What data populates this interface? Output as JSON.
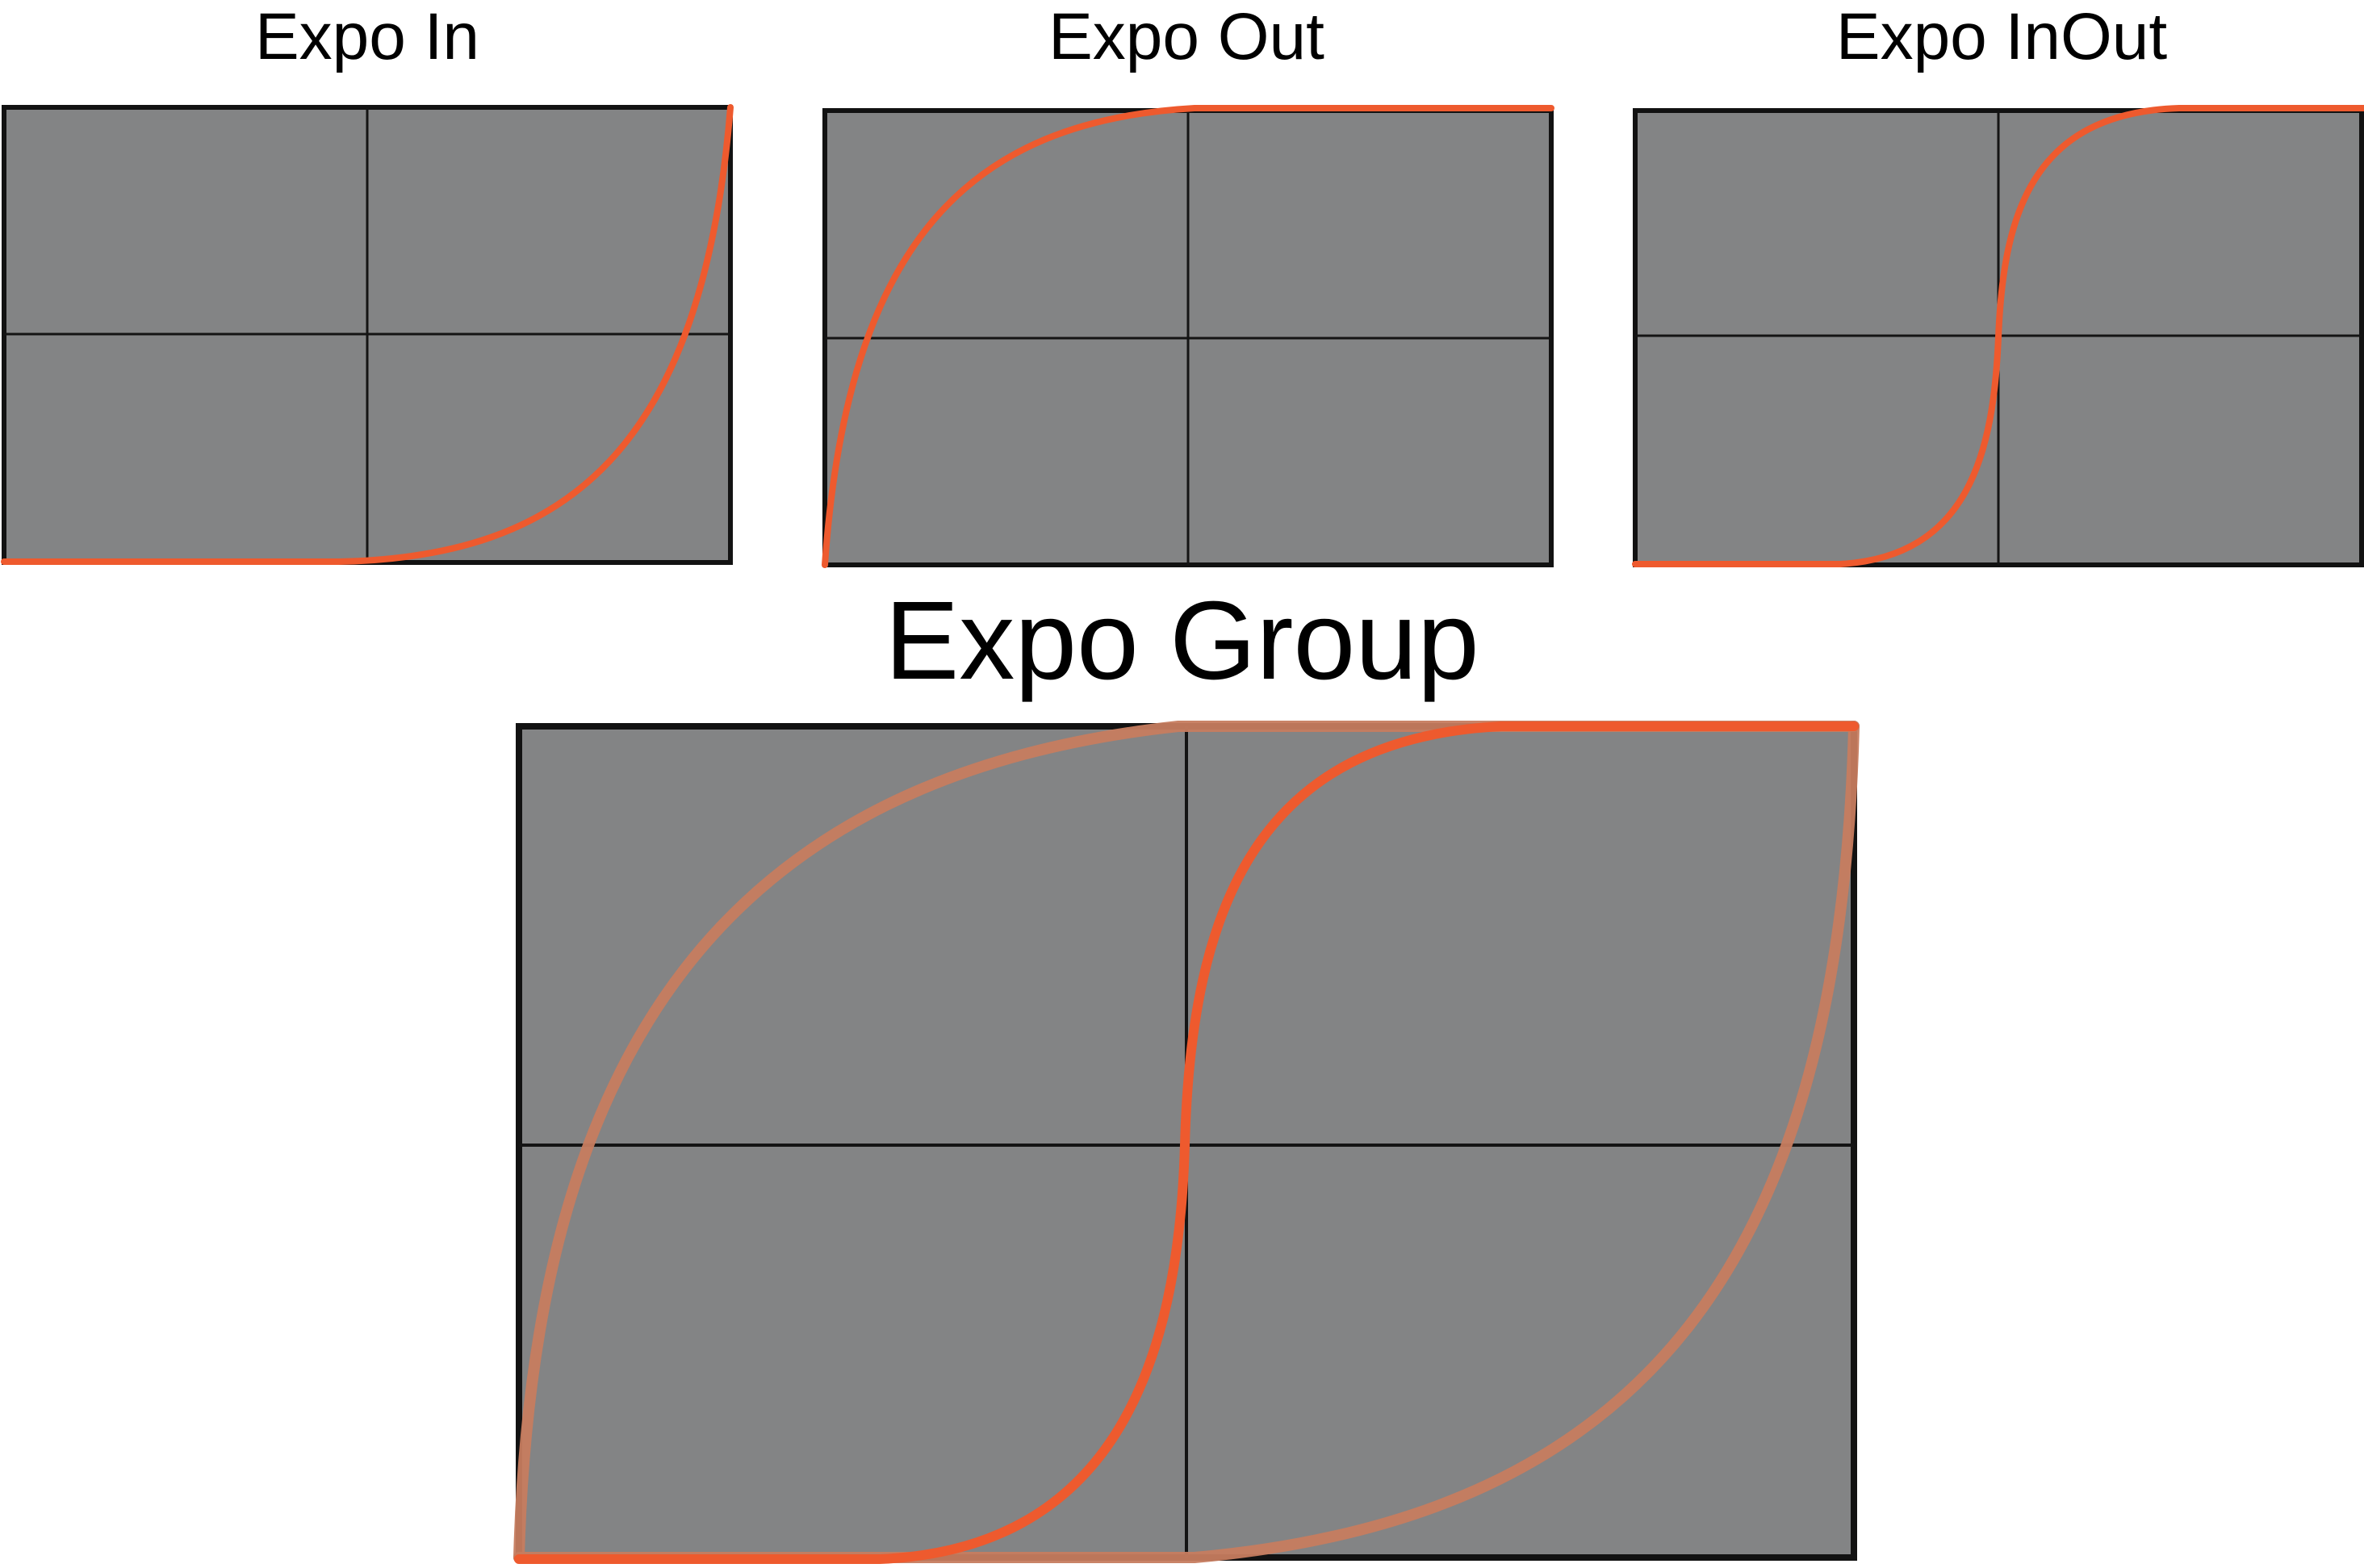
{
  "panels": [
    {
      "id": "expo-in",
      "title": "Expo In"
    },
    {
      "id": "expo-out",
      "title": "Expo Out"
    },
    {
      "id": "expo-inout",
      "title": "Expo InOut"
    }
  ],
  "group": {
    "title": "Expo Group"
  },
  "colors": {
    "panel_fill": "#838485",
    "grid_line": "#141414",
    "frame": "#121212",
    "curve": "#ee5a2e",
    "curve_faded": "#c67c5f"
  }
}
